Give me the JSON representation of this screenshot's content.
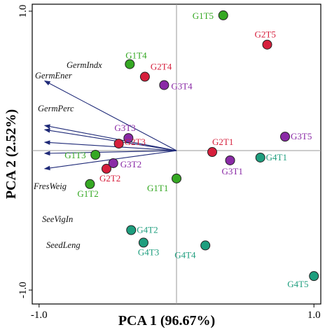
{
  "chart_data": {
    "type": "scatter",
    "title": "",
    "xlabel": "PCA 1 (96.67%)",
    "ylabel": "PCA 2 (2.52%)",
    "xlim": [
      -1.05,
      1.05
    ],
    "ylim": [
      -1.1,
      1.05
    ],
    "x_ticks": [
      {
        "value": -1.0,
        "label": "-1.0"
      },
      {
        "value": 1.0,
        "label": "1.0"
      }
    ],
    "y_ticks": [
      {
        "value": 1.0,
        "label": "1.0"
      },
      {
        "value": -1.0,
        "label": "-1.0"
      }
    ],
    "zero_lines": true,
    "grid": false,
    "colors": {
      "G1": "#35a823",
      "G2": "#d61f3c",
      "G3": "#8a2aa6",
      "G4": "#1e9e7e",
      "arrow": "#1f2a78"
    },
    "points": [
      {
        "label": "G1T5",
        "group": "G1",
        "x": 0.34,
        "y": 0.97
      },
      {
        "label": "G1T4",
        "group": "G1",
        "x": -0.34,
        "y": 0.62
      },
      {
        "label": "G1T3",
        "group": "G1",
        "x": -0.59,
        "y": -0.03
      },
      {
        "label": "G1T2",
        "group": "G1",
        "x": -0.63,
        "y": -0.24
      },
      {
        "label": "G1T1",
        "group": "G1",
        "x": 0.0,
        "y": -0.2
      },
      {
        "label": "G2T5",
        "group": "G2",
        "x": 0.66,
        "y": 0.76
      },
      {
        "label": "G2T4",
        "group": "G2",
        "x": -0.23,
        "y": 0.53
      },
      {
        "label": "G2T3",
        "group": "G2",
        "x": -0.42,
        "y": 0.05
      },
      {
        "label": "G2T2",
        "group": "G2",
        "x": -0.51,
        "y": -0.13
      },
      {
        "label": "G2T1",
        "group": "G2",
        "x": 0.26,
        "y": -0.01
      },
      {
        "label": "G3T5",
        "group": "G3",
        "x": 0.79,
        "y": 0.1
      },
      {
        "label": "G3T4",
        "group": "G3",
        "x": -0.09,
        "y": 0.47
      },
      {
        "label": "G3T3",
        "group": "G3",
        "x": -0.35,
        "y": 0.09
      },
      {
        "label": "G3T2",
        "group": "G3",
        "x": -0.46,
        "y": -0.09
      },
      {
        "label": "G3T1",
        "group": "G3",
        "x": 0.39,
        "y": -0.07
      },
      {
        "label": "G4T5",
        "group": "G4",
        "x": 1.0,
        "y": -0.9
      },
      {
        "label": "G4T4",
        "group": "G4",
        "x": 0.21,
        "y": -0.68
      },
      {
        "label": "G4T3",
        "group": "G4",
        "x": -0.24,
        "y": -0.66
      },
      {
        "label": "G4T2",
        "group": "G4",
        "x": -0.33,
        "y": -0.57
      },
      {
        "label": "G4T1",
        "group": "G4",
        "x": 0.61,
        "y": -0.05
      }
    ],
    "loadings": [
      {
        "label": "GermIndx",
        "x": -1.0,
        "y": 0.5
      },
      {
        "label": "GermEner",
        "x": -1.0,
        "y": 0.18
      },
      {
        "label": "GermPerc",
        "x": -1.0,
        "y": 0.15
      },
      {
        "label": "FresWeig",
        "x": -1.0,
        "y": 0.06
      },
      {
        "label": "SeeVigIn",
        "x": -1.0,
        "y": -0.02
      },
      {
        "label": "SeedLeng",
        "x": -1.0,
        "y": -0.13
      }
    ]
  }
}
